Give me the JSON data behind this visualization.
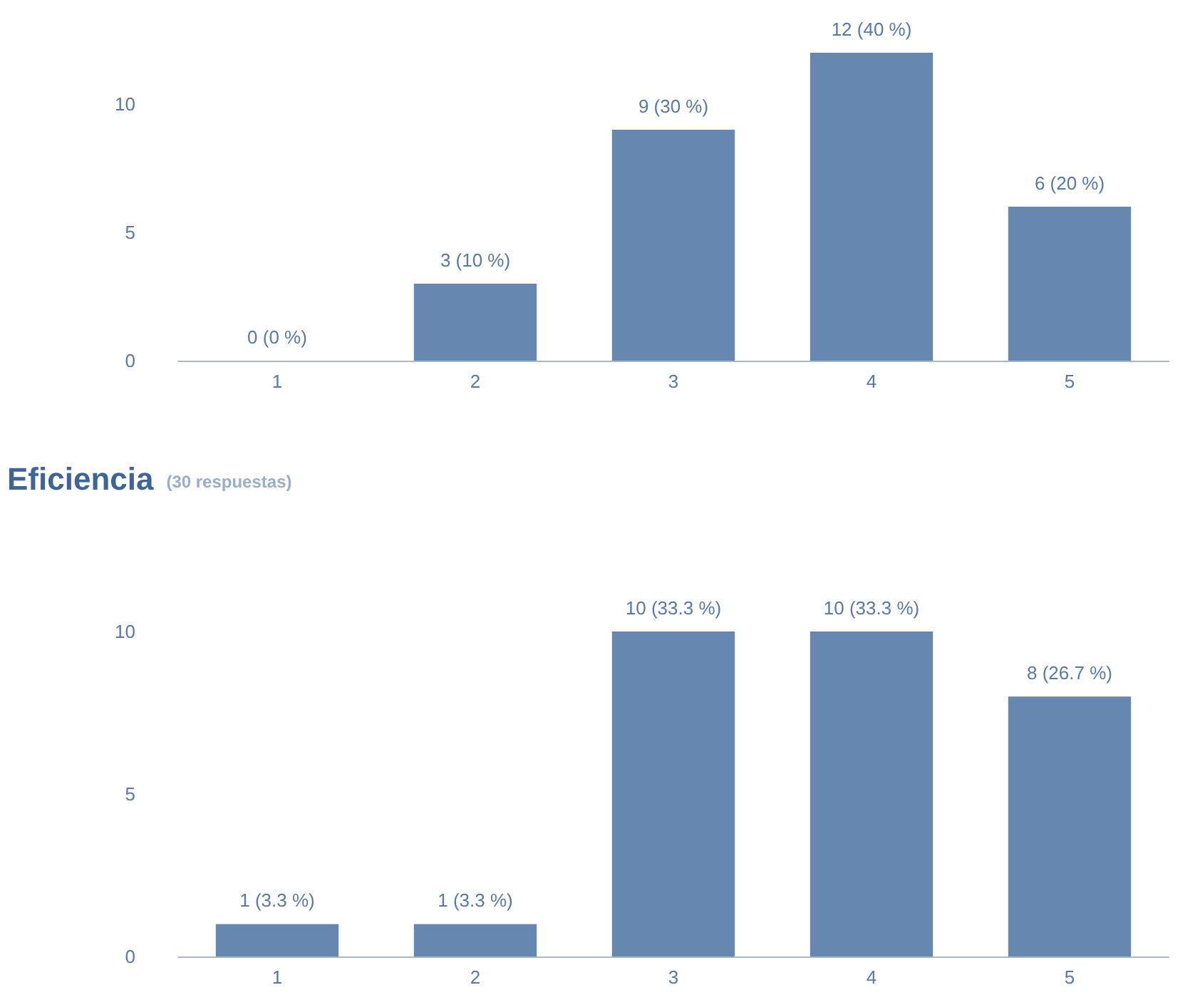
{
  "chart_data": [
    {
      "type": "bar",
      "categories": [
        "1",
        "2",
        "3",
        "4",
        "5"
      ],
      "values": [
        0,
        3,
        9,
        12,
        6
      ],
      "color": "#6688b0",
      "value_labels": [
        "0 (0 %)",
        "3 (10 %)",
        "9 (30 %)",
        "12 (40 %)",
        "6 (20 %)"
      ],
      "ylim": [
        0,
        12
      ],
      "yticks": [
        0,
        5,
        10
      ],
      "grid": false
    },
    {
      "type": "bar",
      "title": "Eficiencia",
      "subtitle": "(30 respuestas)",
      "categories": [
        "1",
        "2",
        "3",
        "4",
        "5"
      ],
      "values": [
        1,
        1,
        10,
        10,
        8
      ],
      "color": "#6688b0",
      "value_labels": [
        "1 (3.3 %)",
        "1 (3.3 %)",
        "10 (33.3 %)",
        "10 (33.3 %)",
        "8 (26.7 %)"
      ],
      "ylim": [
        0,
        10
      ],
      "yticks": [
        0,
        5,
        10
      ],
      "grid": false
    }
  ]
}
